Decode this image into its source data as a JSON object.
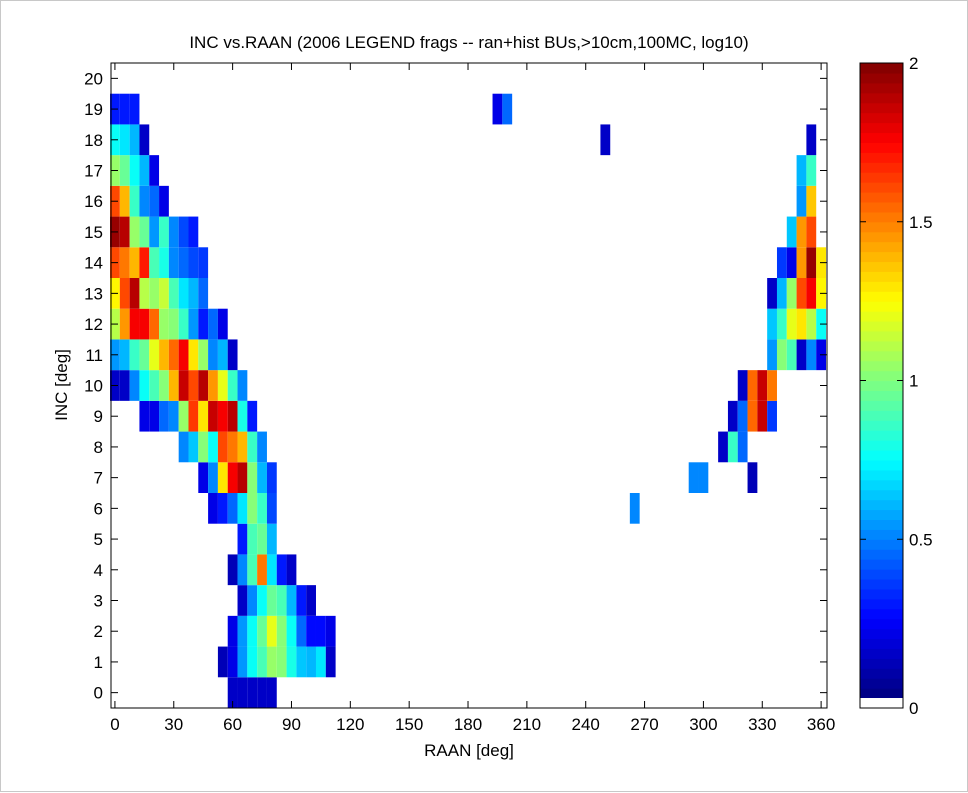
{
  "chart_data": {
    "type": "heatmap",
    "title": "INC vs.RAAN (2006 LEGEND frags -- ran+hist BUs,>10cm,100MC, log10)",
    "xlabel": "RAAN [deg]",
    "ylabel": "INC [deg]",
    "xlim": [
      -2,
      363
    ],
    "ylim": [
      -0.5,
      20.5
    ],
    "x_ticks": [
      0,
      30,
      60,
      90,
      120,
      150,
      180,
      210,
      240,
      270,
      300,
      330,
      360
    ],
    "y_ticks": [
      0,
      1,
      2,
      3,
      4,
      5,
      6,
      7,
      8,
      9,
      10,
      11,
      12,
      13,
      14,
      15,
      16,
      17,
      18,
      19,
      20
    ],
    "x_bin_width": 5,
    "y_bin_height": 1,
    "colorbar": {
      "colormap": "jet",
      "min": 0,
      "max": 2,
      "ticks": [
        0,
        0.5,
        1,
        1.5,
        2
      ],
      "levels": 64
    },
    "cells": [
      {
        "inc": 0,
        "values": [
          [
            60,
            0.15
          ],
          [
            65,
            0.15
          ],
          [
            70,
            0.15
          ],
          [
            75,
            0.15
          ],
          [
            80,
            0.15
          ]
        ]
      },
      {
        "inc": 1,
        "values": [
          [
            55,
            0.1
          ],
          [
            60,
            0.2
          ],
          [
            65,
            0.55
          ],
          [
            70,
            0.75
          ],
          [
            75,
            0.9
          ],
          [
            80,
            1.05
          ],
          [
            85,
            1.0
          ],
          [
            90,
            0.8
          ],
          [
            95,
            0.65
          ],
          [
            100,
            0.6
          ],
          [
            105,
            0.7
          ],
          [
            110,
            0.15
          ]
        ]
      },
      {
        "inc": 2,
        "values": [
          [
            60,
            0.2
          ],
          [
            65,
            0.55
          ],
          [
            70,
            0.75
          ],
          [
            75,
            0.95
          ],
          [
            80,
            1.2
          ],
          [
            85,
            1.0
          ],
          [
            90,
            0.75
          ],
          [
            95,
            0.45
          ],
          [
            100,
            0.25
          ],
          [
            105,
            0.25
          ],
          [
            110,
            0.2
          ]
        ]
      },
      {
        "inc": 3,
        "values": [
          [
            65,
            0.15
          ],
          [
            70,
            0.5
          ],
          [
            75,
            0.75
          ],
          [
            80,
            0.95
          ],
          [
            85,
            0.9
          ],
          [
            90,
            0.6
          ],
          [
            95,
            0.3
          ],
          [
            100,
            0.15
          ]
        ]
      },
      {
        "inc": 4,
        "values": [
          [
            60,
            0.1
          ],
          [
            65,
            0.5
          ],
          [
            70,
            0.9
          ],
          [
            75,
            1.5
          ],
          [
            80,
            0.7
          ],
          [
            85,
            0.3
          ],
          [
            90,
            0.15
          ]
        ]
      },
      {
        "inc": 5,
        "values": [
          [
            65,
            0.3
          ],
          [
            70,
            0.9
          ],
          [
            75,
            0.95
          ],
          [
            80,
            0.6
          ]
        ]
      },
      {
        "inc": 6,
        "values": [
          [
            50,
            0.2
          ],
          [
            55,
            0.3
          ],
          [
            60,
            0.45
          ],
          [
            65,
            0.7
          ],
          [
            70,
            1.0
          ],
          [
            75,
            0.85
          ],
          [
            80,
            0.4
          ],
          [
            265,
            0.5
          ]
        ]
      },
      {
        "inc": 7,
        "values": [
          [
            45,
            0.2
          ],
          [
            50,
            0.5
          ],
          [
            55,
            1.3
          ],
          [
            60,
            1.75
          ],
          [
            65,
            1.9
          ],
          [
            70,
            1.0
          ],
          [
            75,
            0.6
          ],
          [
            80,
            0.35
          ],
          [
            295,
            0.5
          ],
          [
            300,
            0.5
          ],
          [
            325,
            0.1
          ]
        ]
      },
      {
        "inc": 8,
        "values": [
          [
            35,
            0.5
          ],
          [
            40,
            0.65
          ],
          [
            45,
            1.0
          ],
          [
            50,
            0.75
          ],
          [
            55,
            1.6
          ],
          [
            60,
            1.5
          ],
          [
            65,
            1.4
          ],
          [
            70,
            0.85
          ],
          [
            75,
            0.5
          ],
          [
            310,
            0.15
          ],
          [
            315,
            0.85
          ],
          [
            320,
            0.45
          ]
        ]
      },
      {
        "inc": 9,
        "values": [
          [
            15,
            0.2
          ],
          [
            20,
            0.2
          ],
          [
            25,
            0.45
          ],
          [
            30,
            0.5
          ],
          [
            35,
            1.05
          ],
          [
            40,
            1.65
          ],
          [
            45,
            1.3
          ],
          [
            50,
            1.85
          ],
          [
            55,
            1.75
          ],
          [
            60,
            1.9
          ],
          [
            65,
            0.8
          ],
          [
            70,
            0.3
          ],
          [
            315,
            0.15
          ],
          [
            320,
            0.45
          ],
          [
            325,
            1.55
          ],
          [
            330,
            1.85
          ],
          [
            335,
            0.35
          ]
        ]
      },
      {
        "inc": 10,
        "values": [
          [
            0,
            0.15
          ],
          [
            5,
            0.15
          ],
          [
            10,
            0.5
          ],
          [
            15,
            0.75
          ],
          [
            20,
            0.9
          ],
          [
            25,
            1.0
          ],
          [
            30,
            1.4
          ],
          [
            35,
            1.85
          ],
          [
            40,
            1.6
          ],
          [
            45,
            1.9
          ],
          [
            50,
            1.45
          ],
          [
            55,
            1.2
          ],
          [
            60,
            0.85
          ],
          [
            65,
            0.5
          ],
          [
            320,
            0.15
          ],
          [
            325,
            1.55
          ],
          [
            330,
            1.85
          ],
          [
            335,
            1.5
          ]
        ]
      },
      {
        "inc": 11,
        "values": [
          [
            0,
            0.55
          ],
          [
            5,
            0.6
          ],
          [
            10,
            0.85
          ],
          [
            15,
            0.95
          ],
          [
            20,
            1.2
          ],
          [
            25,
            1.4
          ],
          [
            30,
            1.55
          ],
          [
            35,
            1.75
          ],
          [
            40,
            1.3
          ],
          [
            45,
            1.05
          ],
          [
            50,
            0.5
          ],
          [
            55,
            0.6
          ],
          [
            60,
            0.15
          ],
          [
            335,
            0.55
          ],
          [
            340,
            1.0
          ],
          [
            345,
            0.9
          ],
          [
            350,
            0.15
          ],
          [
            355,
            0.5
          ],
          [
            360,
            0.2
          ]
        ]
      },
      {
        "inc": 12,
        "values": [
          [
            0,
            1.1
          ],
          [
            5,
            1.45
          ],
          [
            10,
            1.75
          ],
          [
            15,
            1.75
          ],
          [
            20,
            1.55
          ],
          [
            25,
            1.05
          ],
          [
            30,
            1.0
          ],
          [
            35,
            0.85
          ],
          [
            40,
            0.55
          ],
          [
            45,
            0.3
          ],
          [
            50,
            0.45
          ],
          [
            55,
            0.2
          ],
          [
            335,
            0.65
          ],
          [
            340,
            0.85
          ],
          [
            345,
            1.2
          ],
          [
            350,
            1.3
          ],
          [
            355,
            1.1
          ],
          [
            360,
            0.75
          ]
        ]
      },
      {
        "inc": 13,
        "values": [
          [
            0,
            1.25
          ],
          [
            5,
            1.6
          ],
          [
            10,
            1.9
          ],
          [
            15,
            1.1
          ],
          [
            20,
            1.05
          ],
          [
            25,
            1.15
          ],
          [
            30,
            0.9
          ],
          [
            35,
            0.7
          ],
          [
            40,
            0.6
          ],
          [
            45,
            0.45
          ],
          [
            335,
            0.15
          ],
          [
            340,
            0.6
          ],
          [
            345,
            1.05
          ],
          [
            350,
            1.6
          ],
          [
            355,
            1.75
          ],
          [
            360,
            1.25
          ]
        ]
      },
      {
        "inc": 14,
        "values": [
          [
            0,
            1.6
          ],
          [
            5,
            1.5
          ],
          [
            10,
            1.4
          ],
          [
            15,
            1.7
          ],
          [
            20,
            0.9
          ],
          [
            25,
            0.8
          ],
          [
            30,
            0.5
          ],
          [
            35,
            0.45
          ],
          [
            40,
            0.4
          ],
          [
            45,
            0.35
          ],
          [
            340,
            0.35
          ],
          [
            345,
            0.2
          ],
          [
            350,
            1.45
          ],
          [
            355,
            1.95
          ],
          [
            360,
            1.3
          ]
        ]
      },
      {
        "inc": 15,
        "values": [
          [
            0,
            1.95
          ],
          [
            5,
            1.9
          ],
          [
            10,
            1.05
          ],
          [
            15,
            0.95
          ],
          [
            20,
            0.55
          ],
          [
            25,
            0.85
          ],
          [
            30,
            0.5
          ],
          [
            35,
            0.4
          ],
          [
            40,
            0.3
          ],
          [
            345,
            0.65
          ],
          [
            350,
            1.45
          ],
          [
            355,
            1.6
          ]
        ]
      },
      {
        "inc": 16,
        "values": [
          [
            0,
            1.6
          ],
          [
            5,
            1.4
          ],
          [
            10,
            0.85
          ],
          [
            15,
            0.5
          ],
          [
            20,
            0.45
          ],
          [
            25,
            0.2
          ],
          [
            350,
            0.55
          ],
          [
            355,
            1.35
          ]
        ]
      },
      {
        "inc": 17,
        "values": [
          [
            0,
            1.05
          ],
          [
            5,
            0.95
          ],
          [
            10,
            0.75
          ],
          [
            15,
            0.6
          ],
          [
            20,
            0.2
          ],
          [
            350,
            0.6
          ],
          [
            355,
            0.85
          ]
        ]
      },
      {
        "inc": 18,
        "values": [
          [
            0,
            0.75
          ],
          [
            5,
            0.7
          ],
          [
            10,
            0.6
          ],
          [
            15,
            0.15
          ],
          [
            250,
            0.15
          ],
          [
            355,
            0.15
          ]
        ]
      },
      {
        "inc": 19,
        "values": [
          [
            0,
            0.3
          ],
          [
            5,
            0.3
          ],
          [
            10,
            0.3
          ],
          [
            195,
            0.2
          ],
          [
            200,
            0.45
          ]
        ]
      }
    ]
  }
}
